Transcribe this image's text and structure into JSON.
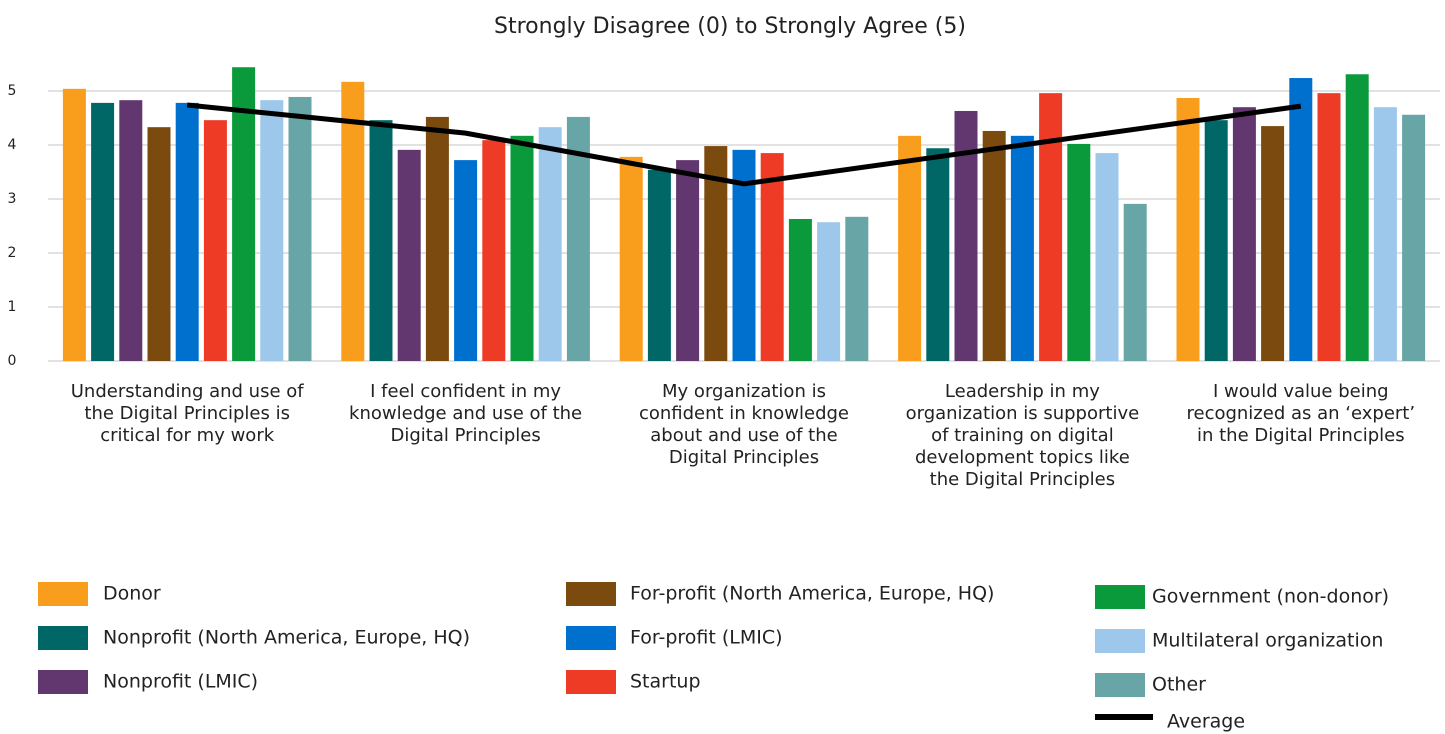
{
  "chart_data": {
    "type": "bar",
    "title": "Strongly Disagree (0) to Strongly Agree (5)",
    "categories": [
      "Understanding and use of the Digital Principles is critical for my work",
      "I feel confident in my knowledge and use of the Digital Principles",
      "My organization is confident in knowledge about and use of the Digital Principles",
      "Leadership in my organization is supportive of training on digital development topics like the Digital Principles",
      "I would value being recognized as an ‘expert’ in the Digital Principles"
    ],
    "series": [
      {
        "name": "Donor",
        "color": "#f99d1c",
        "values": [
          5.04,
          5.17,
          3.78,
          4.17,
          4.87
        ]
      },
      {
        "name": "Nonprofit (North America, Europe, HQ)",
        "color": "#006766",
        "values": [
          4.78,
          4.46,
          3.54,
          3.94,
          4.46
        ]
      },
      {
        "name": "Nonprofit (LMIC)",
        "color": "#62366e",
        "values": [
          4.83,
          3.91,
          3.72,
          4.63,
          4.7
        ]
      },
      {
        "name": "For-profit (North America, Europe, HQ)",
        "color": "#7b4a0e",
        "values": [
          4.33,
          4.52,
          3.98,
          4.26,
          4.35
        ]
      },
      {
        "name": "For-profit (LMIC)",
        "color": "#0070cf",
        "values": [
          4.78,
          3.72,
          3.91,
          4.17,
          5.24
        ]
      },
      {
        "name": "Startup",
        "color": "#ee3b26",
        "values": [
          4.46,
          4.09,
          3.85,
          4.96,
          4.96
        ]
      },
      {
        "name": "Government (non-donor)",
        "color": "#0a9a3c",
        "values": [
          5.44,
          4.17,
          2.63,
          4.02,
          5.31
        ]
      },
      {
        "name": "Multilateral organization",
        "color": "#9dc7eb",
        "values": [
          4.83,
          4.33,
          2.57,
          3.85,
          4.7
        ]
      },
      {
        "name": "Other",
        "color": "#67a5a6",
        "values": [
          4.89,
          4.52,
          2.67,
          2.91,
          4.56
        ]
      }
    ],
    "line_series": [
      {
        "name": "Average",
        "color": "#000000",
        "values": [
          4.74,
          4.22,
          3.28,
          4.0,
          4.72
        ]
      }
    ],
    "ylim": [
      0,
      5.6
    ],
    "yticks": [
      0,
      1,
      2,
      3,
      4,
      5
    ],
    "grid": true
  }
}
